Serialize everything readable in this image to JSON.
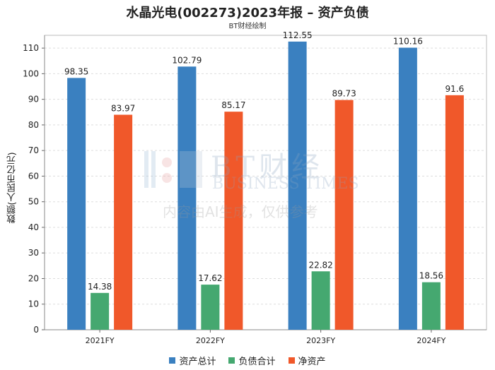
{
  "colors": {
    "total_assets": "#3a80c0",
    "total_liabilities": "#45a870",
    "net_assets": "#f0582a"
  },
  "watermark": {
    "brand": "BT财经",
    "brand_en": "BUSINESS TIMES",
    "note": "内容由AI生成，仅供参考"
  },
  "chart_data": {
    "type": "bar",
    "title": "水晶光电(002273)2023年报 – 资产负债",
    "subtitle": "BT财经绘制",
    "xlabel": "",
    "ylabel": "数额(人民币亿元)",
    "ylim": [
      0,
      115
    ],
    "yticks": [
      0,
      10,
      20,
      30,
      40,
      50,
      60,
      70,
      80,
      90,
      100,
      110
    ],
    "grid": true,
    "legend_position": "bottom",
    "categories": [
      "2021FY",
      "2022FY",
      "2023FY",
      "2024FY"
    ],
    "series": [
      {
        "name": "资产总计",
        "values": [
          98.35,
          102.79,
          112.55,
          110.16
        ],
        "labels": [
          "98.35",
          "102.79",
          "112.55",
          "110.16"
        ]
      },
      {
        "name": "负债合计",
        "values": [
          14.38,
          17.62,
          22.82,
          18.56
        ],
        "labels": [
          "14.38",
          "17.62",
          "22.82",
          "18.56"
        ]
      },
      {
        "name": "净资产",
        "values": [
          83.97,
          85.17,
          89.73,
          91.6
        ],
        "labels": [
          "83.97",
          "85.17",
          "89.73",
          "91.6"
        ]
      }
    ]
  }
}
